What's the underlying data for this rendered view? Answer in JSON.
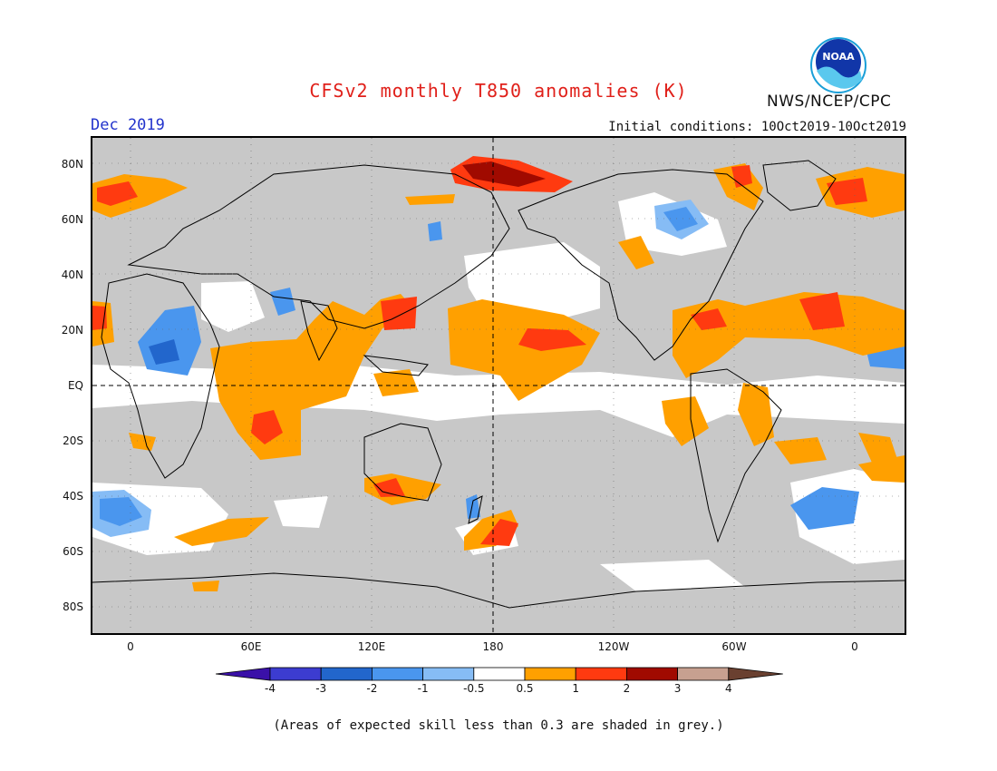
{
  "title": "CFSv2 monthly T850 anomalies (K)",
  "org": "NWS/NCEP/CPC",
  "logo_text": "NOAA",
  "date_label": "Dec 2019",
  "initial_conditions": "Initial conditions: 10Oct2019-10Oct2019",
  "footnote": "(Areas of expected skill less than 0.3 are shaded in grey.)",
  "lat_labels": [
    "80N",
    "60N",
    "40N",
    "20N",
    "EQ",
    "20S",
    "40S",
    "60S",
    "80S"
  ],
  "lon_labels": [
    "0",
    "60E",
    "120E",
    "180",
    "120W",
    "60W",
    "0"
  ],
  "colorbar": {
    "ticks": [
      "-4",
      "-3",
      "-2",
      "-1",
      "-0.5",
      "0.5",
      "1",
      "2",
      "3",
      "4"
    ],
    "colors": [
      "#3a10a8",
      "#3c3cd0",
      "#2266cc",
      "#4a96ee",
      "#86bcf5",
      "#ffffff",
      "#ffa000",
      "#ff3a10",
      "#a00a00",
      "#c7a090",
      "#6a4030"
    ]
  },
  "colors": {
    "skill_grey": "#c8c8c8",
    "title_red": "#e0201a",
    "date_blue": "#2233cc"
  }
}
